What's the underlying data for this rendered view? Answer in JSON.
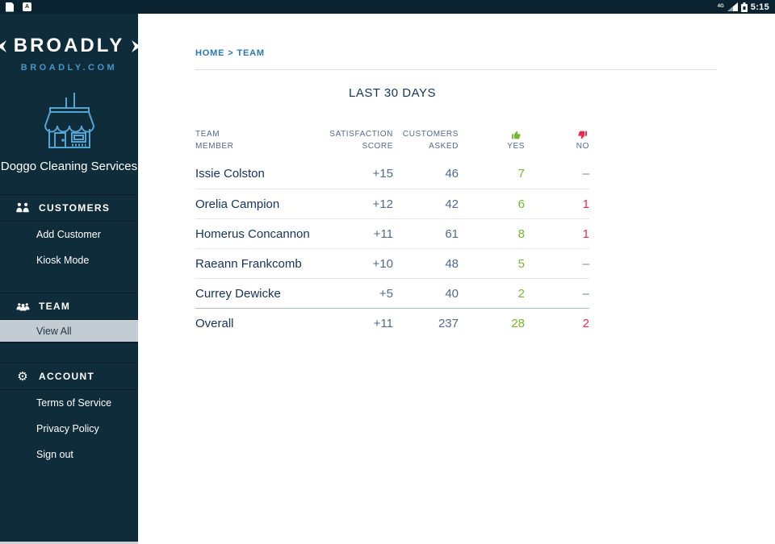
{
  "status_bar": {
    "time": "5:15",
    "network_label": "4G"
  },
  "sidebar": {
    "logo": {
      "title": "BROADLY",
      "subtitle": "BROADLY.COM"
    },
    "business_name": "Doggo Cleaning Services",
    "sections": [
      {
        "label": "CUSTOMERS",
        "icon": "customers-icon",
        "items": [
          {
            "label": "Add Customer"
          },
          {
            "label": "Kiosk Mode"
          }
        ]
      },
      {
        "label": "TEAM",
        "icon": "team-icon",
        "items": [
          {
            "label": "View All",
            "selected": true
          }
        ]
      },
      {
        "label": "ACCOUNT",
        "icon": "gear-icon",
        "items": [
          {
            "label": "Terms of Service"
          },
          {
            "label": "Privacy Policy"
          },
          {
            "label": "Sign out"
          }
        ]
      }
    ]
  },
  "main": {
    "breadcrumb": {
      "items": [
        {
          "label": "HOME"
        },
        {
          "label": "TEAM"
        }
      ],
      "separator": ">"
    },
    "title": "LAST 30 DAYS",
    "table": {
      "headers": {
        "member": [
          "TEAM",
          "MEMBER"
        ],
        "score": [
          "SATISFACTION",
          "SCORE"
        ],
        "asked": [
          "CUSTOMERS",
          "ASKED"
        ],
        "yes": "YES",
        "no": "NO"
      },
      "rows": [
        {
          "name": "Issie Colston",
          "score": "+15",
          "asked": "46",
          "yes": "7",
          "no": "–"
        },
        {
          "name": "Orelia Campion",
          "score": "+12",
          "asked": "42",
          "yes": "6",
          "no": "1"
        },
        {
          "name": "Homerus Concannon",
          "score": "+11",
          "asked": "61",
          "yes": "8",
          "no": "1"
        },
        {
          "name": "Raeann Frankcomb",
          "score": "+10",
          "asked": "48",
          "yes": "5",
          "no": "–"
        },
        {
          "name": "Currey Dewicke",
          "score": "+5",
          "asked": "40",
          "yes": "2",
          "no": "–"
        },
        {
          "name": "Overall",
          "score": "+11",
          "asked": "237",
          "yes": "28",
          "no": "2",
          "overall": true
        }
      ]
    }
  },
  "colors": {
    "sidebar_bg": "#0f2c3a",
    "statusbar_bg": "#0b2330",
    "accent_blue": "#4796c8",
    "store_icon_blue": "#54a5d4",
    "breadcrumb_blue": "#2577b8",
    "navy_text": "#16325c",
    "muted_text": "#54698d",
    "yes_green": "#74b62e",
    "no_red": "#ee2b4d",
    "selected_row_bg": "#c3ccd2"
  }
}
